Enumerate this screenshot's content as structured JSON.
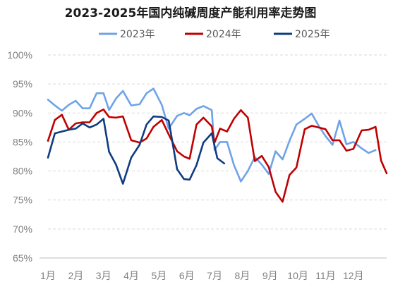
{
  "chart_data": {
    "type": "line",
    "title": "2023-2025年国内纯碱周度产能利用率走势图",
    "xlabel": "",
    "ylabel": "",
    "x_categories": [
      "1月",
      "2月",
      "3月",
      "4月",
      "5月",
      "6月",
      "7月",
      "8月",
      "9月",
      "10月",
      "11月",
      "12月"
    ],
    "x_domain": [
      1,
      12.8
    ],
    "ylim": [
      65,
      100
    ],
    "y_ticks": [
      65,
      70,
      75,
      80,
      85,
      90,
      95,
      100
    ],
    "y_tick_labels": [
      "65%",
      "70%",
      "75%",
      "80%",
      "85%",
      "90%",
      "95%",
      "100%"
    ],
    "grid": "horizontal-dashed",
    "legend_position": "top",
    "series": [
      {
        "name": "2023年",
        "color": "#6fa3e8",
        "points": [
          [
            1.0,
            92.3
          ],
          [
            1.25,
            91.3
          ],
          [
            1.5,
            90.4
          ],
          [
            1.75,
            91.4
          ],
          [
            2.0,
            92.1
          ],
          [
            2.25,
            90.8
          ],
          [
            2.5,
            90.8
          ],
          [
            2.75,
            93.4
          ],
          [
            3.0,
            93.4
          ],
          [
            3.2,
            90.5
          ],
          [
            3.45,
            92.5
          ],
          [
            3.7,
            93.8
          ],
          [
            4.0,
            91.3
          ],
          [
            4.3,
            91.5
          ],
          [
            4.55,
            93.4
          ],
          [
            4.8,
            94.2
          ],
          [
            5.1,
            91.4
          ],
          [
            5.35,
            87.3
          ],
          [
            5.65,
            89.5
          ],
          [
            5.9,
            90.0
          ],
          [
            6.1,
            89.6
          ],
          [
            6.35,
            90.7
          ],
          [
            6.6,
            91.2
          ],
          [
            6.9,
            90.5
          ],
          [
            7.0,
            83.6
          ],
          [
            7.2,
            85.0
          ],
          [
            7.45,
            85.0
          ],
          [
            7.7,
            81.0
          ],
          [
            7.95,
            78.2
          ],
          [
            8.2,
            80.0
          ],
          [
            8.45,
            82.4
          ],
          [
            8.7,
            81.1
          ],
          [
            8.95,
            79.5
          ],
          [
            9.2,
            83.4
          ],
          [
            9.45,
            82.0
          ],
          [
            9.7,
            85.2
          ],
          [
            9.95,
            88.0
          ],
          [
            10.25,
            89.0
          ],
          [
            10.5,
            89.9
          ],
          [
            10.75,
            87.8
          ],
          [
            11.0,
            86.0
          ],
          [
            11.25,
            84.5
          ],
          [
            11.5,
            88.7
          ],
          [
            11.75,
            84.6
          ],
          [
            12.0,
            85.0
          ],
          [
            12.3,
            83.9
          ],
          [
            12.55,
            83.1
          ],
          [
            12.8,
            83.6
          ]
        ]
      },
      {
        "name": "2024年",
        "color": "#c00000",
        "points": [
          [
            1.0,
            85.2
          ],
          [
            1.25,
            88.8
          ],
          [
            1.5,
            89.7
          ],
          [
            1.75,
            87.1
          ],
          [
            2.0,
            88.2
          ],
          [
            2.25,
            88.4
          ],
          [
            2.5,
            88.4
          ],
          [
            2.75,
            90.0
          ],
          [
            3.0,
            90.6
          ],
          [
            3.2,
            89.3
          ],
          [
            3.45,
            89.2
          ],
          [
            3.7,
            89.4
          ],
          [
            4.0,
            85.3
          ],
          [
            4.3,
            84.9
          ],
          [
            4.55,
            85.6
          ],
          [
            4.8,
            87.6
          ],
          [
            5.1,
            88.8
          ],
          [
            5.35,
            86.3
          ],
          [
            5.65,
            83.4
          ],
          [
            5.9,
            82.5
          ],
          [
            6.1,
            82.1
          ],
          [
            6.35,
            88.0
          ],
          [
            6.6,
            89.2
          ],
          [
            6.9,
            87.7
          ],
          [
            7.0,
            84.9
          ],
          [
            7.2,
            87.3
          ],
          [
            7.45,
            86.8
          ],
          [
            7.7,
            89.0
          ],
          [
            7.95,
            90.5
          ],
          [
            8.2,
            89.2
          ],
          [
            8.45,
            81.7
          ],
          [
            8.7,
            82.6
          ],
          [
            8.95,
            80.7
          ],
          [
            9.2,
            76.4
          ],
          [
            9.45,
            74.7
          ],
          [
            9.7,
            79.3
          ],
          [
            9.95,
            80.6
          ],
          [
            10.25,
            87.2
          ],
          [
            10.5,
            87.8
          ],
          [
            10.75,
            87.5
          ],
          [
            11.0,
            87.2
          ],
          [
            11.25,
            85.3
          ],
          [
            11.5,
            85.3
          ],
          [
            11.75,
            83.5
          ],
          [
            12.0,
            83.8
          ],
          [
            12.3,
            87.0
          ],
          [
            12.55,
            87.1
          ],
          [
            12.8,
            87.6
          ],
          [
            13.0,
            81.8
          ],
          [
            13.2,
            79.6
          ]
        ]
      },
      {
        "name": "2025年",
        "color": "#0f3c81",
        "points": [
          [
            1.0,
            82.3
          ],
          [
            1.25,
            86.5
          ],
          [
            1.5,
            86.8
          ],
          [
            1.75,
            87.1
          ],
          [
            2.0,
            87.3
          ],
          [
            2.25,
            88.2
          ],
          [
            2.5,
            87.5
          ],
          [
            2.75,
            88.0
          ],
          [
            3.0,
            89.0
          ],
          [
            3.2,
            83.3
          ],
          [
            3.45,
            81.1
          ],
          [
            3.7,
            77.8
          ],
          [
            4.0,
            82.3
          ],
          [
            4.3,
            84.5
          ],
          [
            4.55,
            88.0
          ],
          [
            4.8,
            89.4
          ],
          [
            5.1,
            89.3
          ],
          [
            5.35,
            88.7
          ],
          [
            5.65,
            80.3
          ],
          [
            5.9,
            78.6
          ],
          [
            6.1,
            78.5
          ],
          [
            6.35,
            81.0
          ],
          [
            6.6,
            84.9
          ],
          [
            6.9,
            86.5
          ],
          [
            7.1,
            82.2
          ],
          [
            7.35,
            81.3
          ]
        ]
      }
    ]
  }
}
